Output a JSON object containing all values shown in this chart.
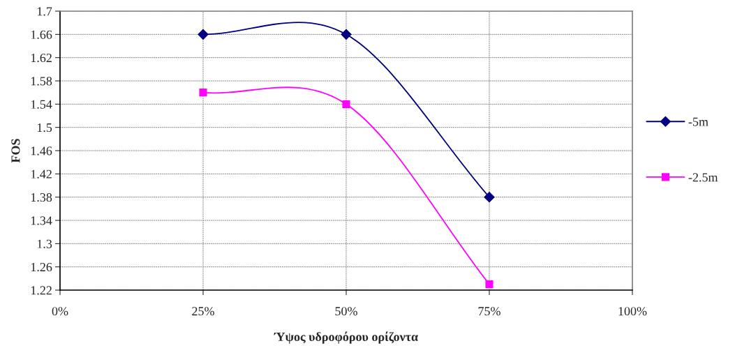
{
  "chart_data": {
    "type": "line",
    "xlabel": "Ύψος υδροφόρου ορίζοντα",
    "ylabel": "FOS",
    "x": [
      25,
      50,
      75
    ],
    "series": [
      {
        "name": "-5m",
        "color": "#000080",
        "values": [
          1.66,
          1.66,
          1.38
        ],
        "marker": "diamond"
      },
      {
        "name": "-2.5m",
        "color": "#ff00ff",
        "values": [
          1.56,
          1.54,
          1.23
        ],
        "marker": "square"
      }
    ],
    "xlim": [
      0,
      100
    ],
    "xticks": [
      {
        "value": 0,
        "label": "0%"
      },
      {
        "value": 25,
        "label": "25%"
      },
      {
        "value": 50,
        "label": "50%"
      },
      {
        "value": 75,
        "label": "75%"
      },
      {
        "value": 100,
        "label": "100%"
      }
    ],
    "ylim": [
      1.22,
      1.7
    ],
    "yticks": [
      1.22,
      1.26,
      1.3,
      1.34,
      1.38,
      1.42,
      1.46,
      1.5,
      1.54,
      1.58,
      1.62,
      1.66,
      1.7
    ],
    "grid": true,
    "legend": "right",
    "line_style": "solid"
  }
}
